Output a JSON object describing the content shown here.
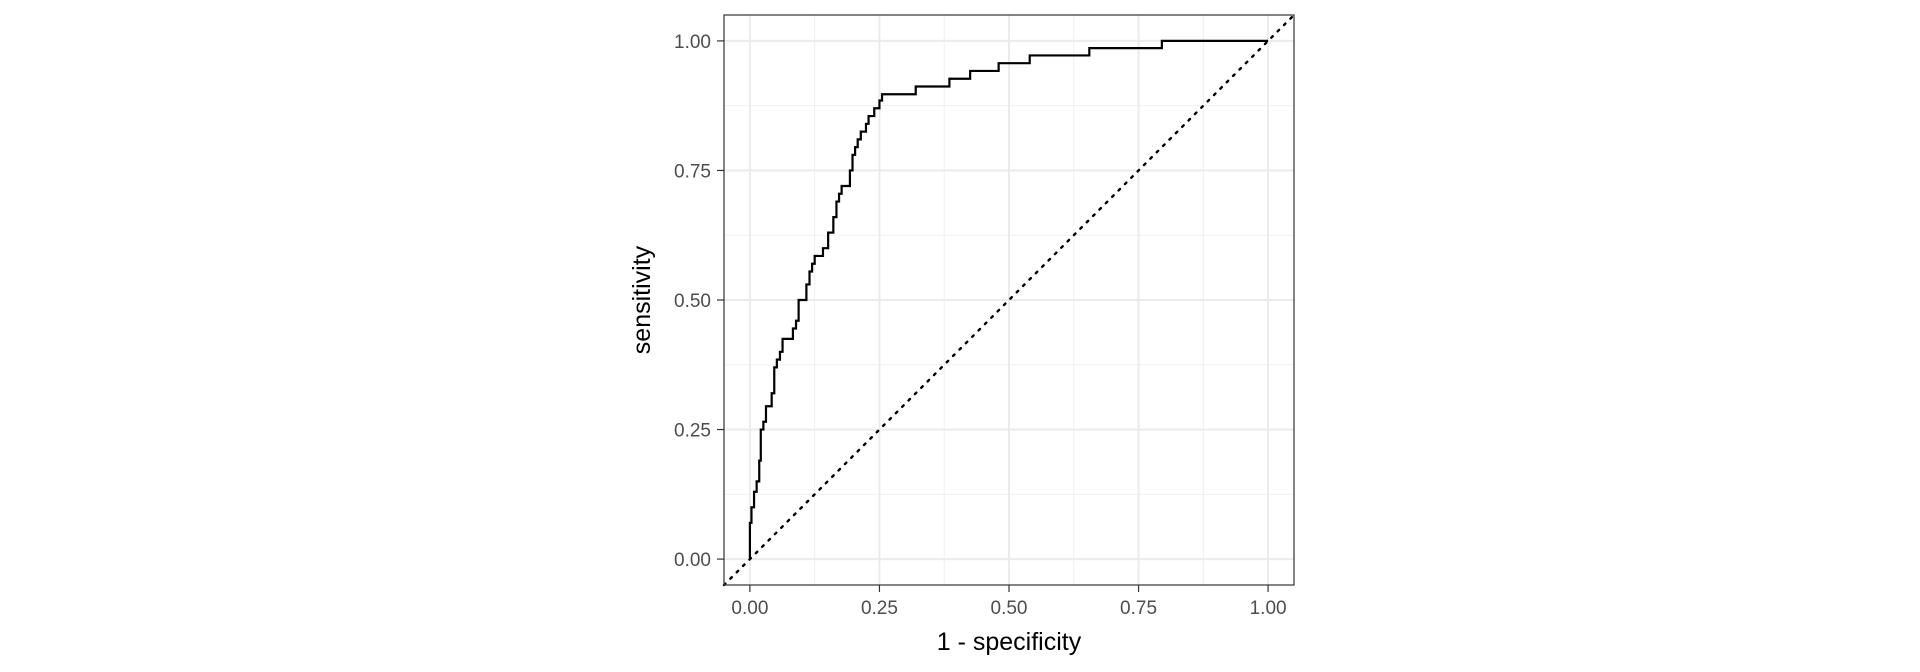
{
  "chart_data": {
    "type": "line",
    "title": "",
    "xlabel": "1 - specificity",
    "ylabel": "sensitivity",
    "xlim": [
      -0.05,
      1.05
    ],
    "ylim": [
      -0.05,
      1.05
    ],
    "x_ticks": [
      0,
      0.25,
      0.5,
      0.75,
      1
    ],
    "x_tick_labels": [
      "0.00",
      "0.25",
      "0.50",
      "0.75",
      "1.00"
    ],
    "y_ticks": [
      0,
      0.25,
      0.5,
      0.75,
      1
    ],
    "y_tick_labels": [
      "0.00",
      "0.25",
      "0.50",
      "0.75",
      "1.00"
    ],
    "grid": true,
    "legend": "none",
    "series": [
      {
        "style": "step",
        "color": "#000000",
        "points": [
          [
            0.0,
            0.0
          ],
          [
            0.0,
            0.07
          ],
          [
            0.003,
            0.07
          ],
          [
            0.003,
            0.1
          ],
          [
            0.008,
            0.1
          ],
          [
            0.008,
            0.13
          ],
          [
            0.013,
            0.13
          ],
          [
            0.013,
            0.15
          ],
          [
            0.018,
            0.15
          ],
          [
            0.018,
            0.19
          ],
          [
            0.021,
            0.19
          ],
          [
            0.021,
            0.25
          ],
          [
            0.026,
            0.25
          ],
          [
            0.026,
            0.265
          ],
          [
            0.031,
            0.265
          ],
          [
            0.031,
            0.295
          ],
          [
            0.042,
            0.295
          ],
          [
            0.042,
            0.32
          ],
          [
            0.047,
            0.32
          ],
          [
            0.047,
            0.37
          ],
          [
            0.052,
            0.37
          ],
          [
            0.052,
            0.385
          ],
          [
            0.058,
            0.385
          ],
          [
            0.058,
            0.4
          ],
          [
            0.063,
            0.4
          ],
          [
            0.063,
            0.425
          ],
          [
            0.083,
            0.425
          ],
          [
            0.083,
            0.445
          ],
          [
            0.089,
            0.445
          ],
          [
            0.089,
            0.46
          ],
          [
            0.094,
            0.46
          ],
          [
            0.094,
            0.5
          ],
          [
            0.109,
            0.5
          ],
          [
            0.109,
            0.53
          ],
          [
            0.115,
            0.53
          ],
          [
            0.115,
            0.555
          ],
          [
            0.12,
            0.555
          ],
          [
            0.12,
            0.57
          ],
          [
            0.125,
            0.57
          ],
          [
            0.125,
            0.585
          ],
          [
            0.141,
            0.585
          ],
          [
            0.141,
            0.6
          ],
          [
            0.151,
            0.6
          ],
          [
            0.151,
            0.63
          ],
          [
            0.161,
            0.63
          ],
          [
            0.161,
            0.66
          ],
          [
            0.167,
            0.66
          ],
          [
            0.167,
            0.69
          ],
          [
            0.172,
            0.69
          ],
          [
            0.172,
            0.705
          ],
          [
            0.177,
            0.705
          ],
          [
            0.177,
            0.72
          ],
          [
            0.193,
            0.72
          ],
          [
            0.193,
            0.75
          ],
          [
            0.198,
            0.75
          ],
          [
            0.198,
            0.78
          ],
          [
            0.203,
            0.78
          ],
          [
            0.203,
            0.795
          ],
          [
            0.208,
            0.795
          ],
          [
            0.208,
            0.81
          ],
          [
            0.214,
            0.81
          ],
          [
            0.214,
            0.825
          ],
          [
            0.224,
            0.825
          ],
          [
            0.224,
            0.84
          ],
          [
            0.229,
            0.84
          ],
          [
            0.229,
            0.855
          ],
          [
            0.24,
            0.855
          ],
          [
            0.24,
            0.87
          ],
          [
            0.25,
            0.87
          ],
          [
            0.25,
            0.885
          ],
          [
            0.255,
            0.885
          ],
          [
            0.255,
            0.897
          ],
          [
            0.32,
            0.897
          ],
          [
            0.32,
            0.912
          ],
          [
            0.385,
            0.912
          ],
          [
            0.385,
            0.927
          ],
          [
            0.425,
            0.927
          ],
          [
            0.425,
            0.942
          ],
          [
            0.48,
            0.942
          ],
          [
            0.48,
            0.957
          ],
          [
            0.54,
            0.957
          ],
          [
            0.54,
            0.972
          ],
          [
            0.655,
            0.972
          ],
          [
            0.655,
            0.986
          ],
          [
            0.795,
            0.986
          ],
          [
            0.795,
            1.0
          ],
          [
            1.0,
            1.0
          ]
        ]
      },
      {
        "style": "dotted",
        "color": "#000000",
        "points": [
          [
            -0.05,
            -0.05
          ],
          [
            1.05,
            1.05
          ]
        ]
      }
    ]
  }
}
